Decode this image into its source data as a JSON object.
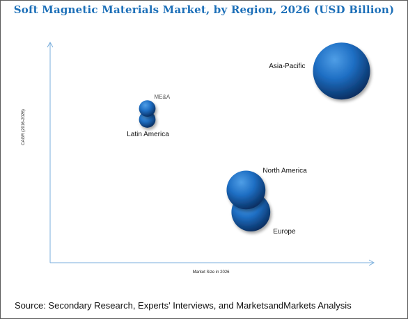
{
  "title": "Soft Magnetic Materials Market, by Region, 2026 (USD Billion)",
  "source": "Source: Secondary Research, Experts' Interviews, and MarketsandMarkets Analysis",
  "colors": {
    "title": "#1c6fb8",
    "bubble_light": "#4f9ee6",
    "bubble_mid": "#1f6fc4",
    "bubble_dark": "#062a5a",
    "axis": "#7aaedc"
  },
  "chart_data": {
    "type": "bubble",
    "title": "Soft Magnetic Materials Market, by Region, 2026 (USD Billion)",
    "xlabel": "Market Size in 2026",
    "ylabel": "CAGR (2016-2026)",
    "x_ticks_shown": false,
    "y_ticks_shown": false,
    "grid": false,
    "points": [
      {
        "label": "Asia-Pacific",
        "x": 0.9,
        "y": 0.87,
        "size": 1.0
      },
      {
        "label": "North America",
        "x": 0.605,
        "y": 0.33,
        "size": 0.68
      },
      {
        "label": "Europe",
        "x": 0.62,
        "y": 0.23,
        "size": 0.68
      },
      {
        "label": "ME&A",
        "x": 0.3,
        "y": 0.7,
        "size": 0.29
      },
      {
        "label": "Latin America",
        "x": 0.3,
        "y": 0.65,
        "size": 0.29
      }
    ]
  }
}
